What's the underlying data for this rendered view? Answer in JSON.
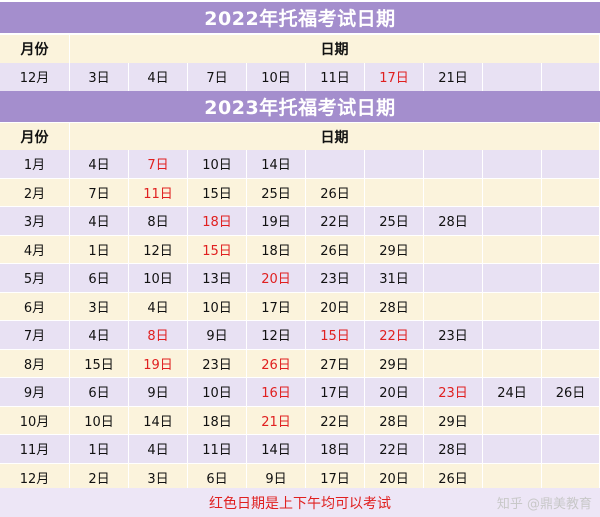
{
  "colors": {
    "banner": "#a48ecd",
    "row_purple": "#e8e1f3",
    "row_cream": "#fbf3dc",
    "highlight": "#e02020"
  },
  "sections": [
    {
      "title": "2022年托福考试日期",
      "header": {
        "month": "月份",
        "dates": "日期"
      },
      "rows": [
        {
          "month": "12月",
          "days": [
            {
              "d": "3日",
              "r": false
            },
            {
              "d": "4日",
              "r": false
            },
            {
              "d": "7日",
              "r": false
            },
            {
              "d": "10日",
              "r": false
            },
            {
              "d": "11日",
              "r": false
            },
            {
              "d": "17日",
              "r": true
            },
            {
              "d": "21日",
              "r": false
            }
          ]
        }
      ]
    },
    {
      "title": "2023年托福考试日期",
      "header": {
        "month": "月份",
        "dates": "日期"
      },
      "rows": [
        {
          "month": "1月",
          "days": [
            {
              "d": "4日",
              "r": false
            },
            {
              "d": "7日",
              "r": true
            },
            {
              "d": "10日",
              "r": false
            },
            {
              "d": "14日",
              "r": false
            }
          ]
        },
        {
          "month": "2月",
          "days": [
            {
              "d": "7日",
              "r": false
            },
            {
              "d": "11日",
              "r": true
            },
            {
              "d": "15日",
              "r": false
            },
            {
              "d": "25日",
              "r": false
            },
            {
              "d": "26日",
              "r": false
            }
          ]
        },
        {
          "month": "3月",
          "days": [
            {
              "d": "4日",
              "r": false
            },
            {
              "d": "8日",
              "r": false
            },
            {
              "d": "18日",
              "r": true
            },
            {
              "d": "19日",
              "r": false
            },
            {
              "d": "22日",
              "r": false
            },
            {
              "d": "25日",
              "r": false
            },
            {
              "d": "28日",
              "r": false
            }
          ]
        },
        {
          "month": "4月",
          "days": [
            {
              "d": "1日",
              "r": false
            },
            {
              "d": "12日",
              "r": false
            },
            {
              "d": "15日",
              "r": true
            },
            {
              "d": "18日",
              "r": false
            },
            {
              "d": "26日",
              "r": false
            },
            {
              "d": "29日",
              "r": false
            }
          ]
        },
        {
          "month": "5月",
          "days": [
            {
              "d": "6日",
              "r": false
            },
            {
              "d": "10日",
              "r": false
            },
            {
              "d": "13日",
              "r": false
            },
            {
              "d": "20日",
              "r": true
            },
            {
              "d": "23日",
              "r": false
            },
            {
              "d": "31日",
              "r": false
            }
          ]
        },
        {
          "month": "6月",
          "days": [
            {
              "d": "3日",
              "r": false
            },
            {
              "d": "4日",
              "r": false
            },
            {
              "d": "10日",
              "r": false
            },
            {
              "d": "17日",
              "r": false
            },
            {
              "d": "20日",
              "r": false
            },
            {
              "d": "28日",
              "r": false
            }
          ]
        },
        {
          "month": "7月",
          "days": [
            {
              "d": "4日",
              "r": false
            },
            {
              "d": "8日",
              "r": true
            },
            {
              "d": "9日",
              "r": false
            },
            {
              "d": "12日",
              "r": false
            },
            {
              "d": "15日",
              "r": true
            },
            {
              "d": "22日",
              "r": true
            },
            {
              "d": "23日",
              "r": false
            }
          ]
        },
        {
          "month": "8月",
          "days": [
            {
              "d": "15日",
              "r": false
            },
            {
              "d": "19日",
              "r": true
            },
            {
              "d": "23日",
              "r": false
            },
            {
              "d": "26日",
              "r": true
            },
            {
              "d": "27日",
              "r": false
            },
            {
              "d": "29日",
              "r": false
            }
          ]
        },
        {
          "month": "9月",
          "days": [
            {
              "d": "6日",
              "r": false
            },
            {
              "d": "9日",
              "r": false
            },
            {
              "d": "10日",
              "r": false
            },
            {
              "d": "16日",
              "r": true
            },
            {
              "d": "17日",
              "r": false
            },
            {
              "d": "20日",
              "r": false
            },
            {
              "d": "23日",
              "r": true
            },
            {
              "d": "24日",
              "r": false
            },
            {
              "d": "26日",
              "r": false
            }
          ]
        },
        {
          "month": "10月",
          "days": [
            {
              "d": "10日",
              "r": false
            },
            {
              "d": "14日",
              "r": false
            },
            {
              "d": "18日",
              "r": false
            },
            {
              "d": "21日",
              "r": true
            },
            {
              "d": "22日",
              "r": false
            },
            {
              "d": "28日",
              "r": false
            },
            {
              "d": "29日",
              "r": false
            }
          ]
        },
        {
          "month": "11月",
          "days": [
            {
              "d": "1日",
              "r": false
            },
            {
              "d": "4日",
              "r": false
            },
            {
              "d": "11日",
              "r": false
            },
            {
              "d": "14日",
              "r": false
            },
            {
              "d": "18日",
              "r": false
            },
            {
              "d": "22日",
              "r": false
            },
            {
              "d": "28日",
              "r": false
            }
          ]
        },
        {
          "month": "12月",
          "days": [
            {
              "d": "2日",
              "r": false
            },
            {
              "d": "3日",
              "r": false
            },
            {
              "d": "6日",
              "r": false
            },
            {
              "d": "9日",
              "r": false
            },
            {
              "d": "17日",
              "r": false
            },
            {
              "d": "20日",
              "r": false
            },
            {
              "d": "26日",
              "r": false
            }
          ]
        }
      ]
    }
  ],
  "footer_note": "红色日期是上下午均可以考试",
  "watermark": "知乎 @鼎美教育"
}
